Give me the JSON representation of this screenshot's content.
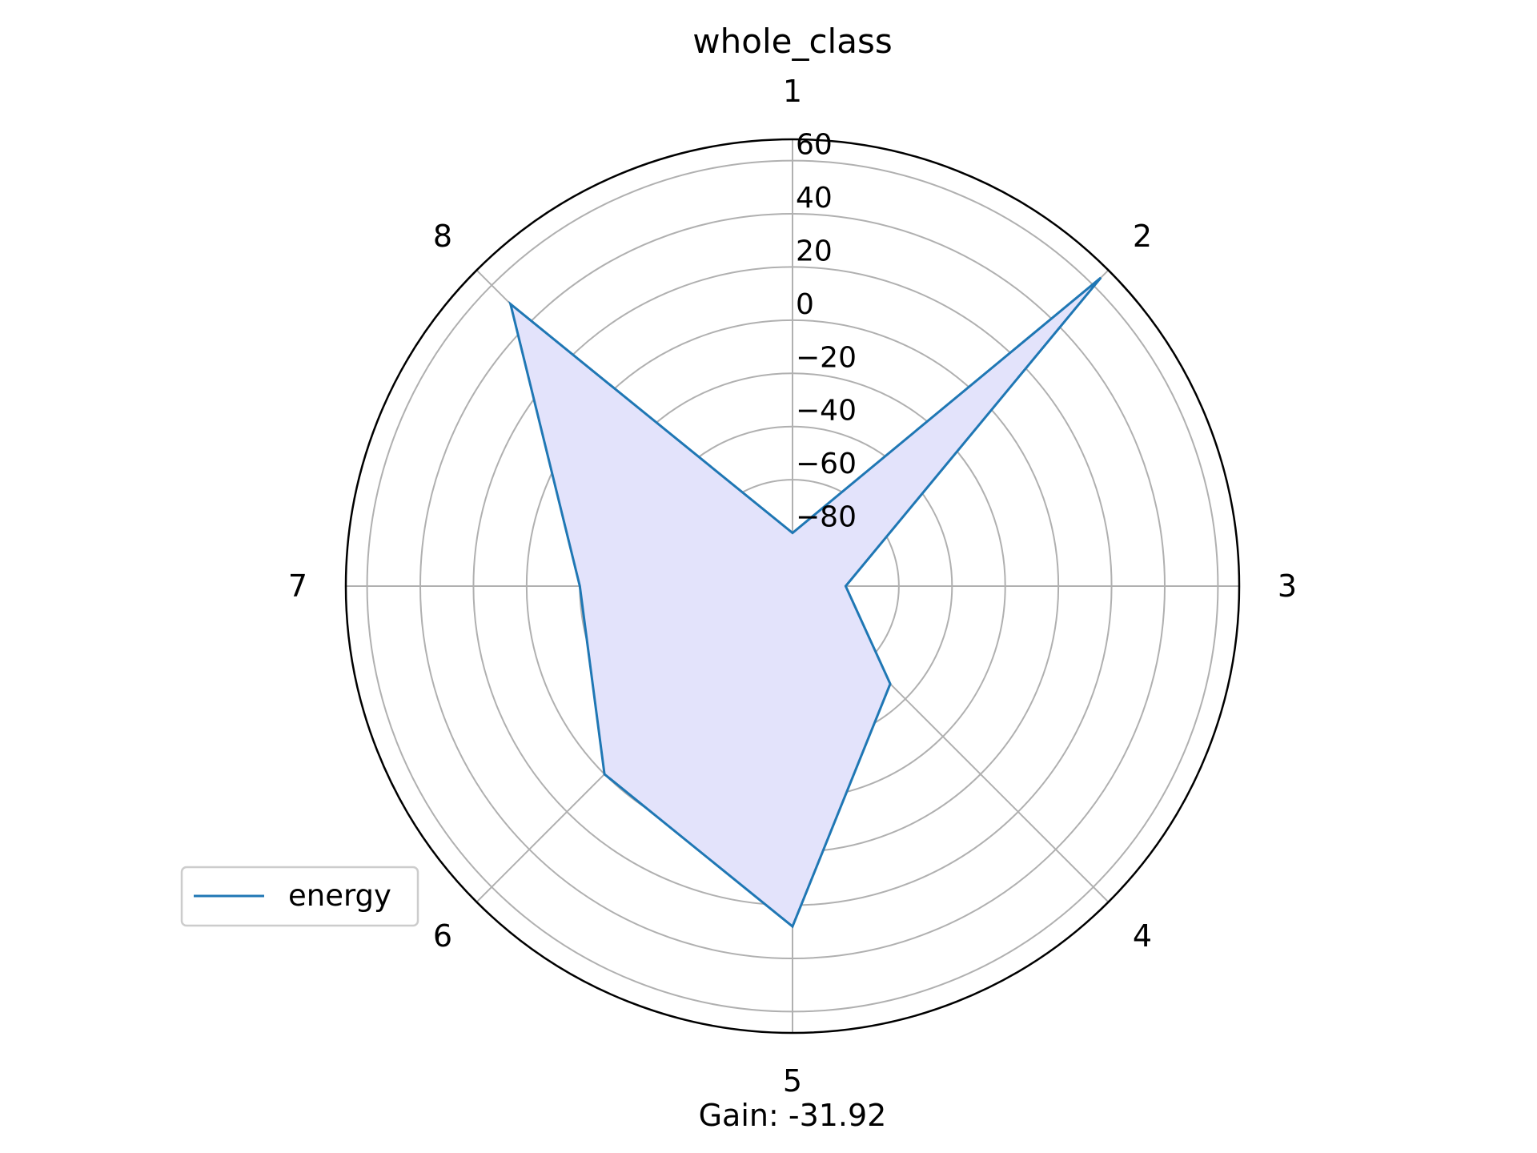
{
  "chart_data": {
    "type": "radar",
    "title": "whole_class",
    "categories": [
      "1",
      "2",
      "3",
      "4",
      "5",
      "6",
      "7",
      "8"
    ],
    "series": [
      {
        "name": "energy",
        "values": [
          -80,
          64,
          -80,
          -48,
          28,
          0,
          -20,
          50
        ]
      }
    ],
    "rlim": [
      -100,
      68
    ],
    "rticks": [
      -80,
      -60,
      -40,
      -20,
      0,
      20,
      40,
      60
    ],
    "rtick_labels": [
      "−80",
      "−60",
      "−40",
      "−20",
      "0",
      "20",
      "40",
      "60"
    ],
    "grid": true,
    "legend": "lower-left",
    "colors": {
      "line": "#1f77b4",
      "fill": "#e3e3fb",
      "grid": "#b0b0b0",
      "outline": "#000000"
    }
  },
  "annotation": {
    "gain": "Gain: -31.92"
  }
}
